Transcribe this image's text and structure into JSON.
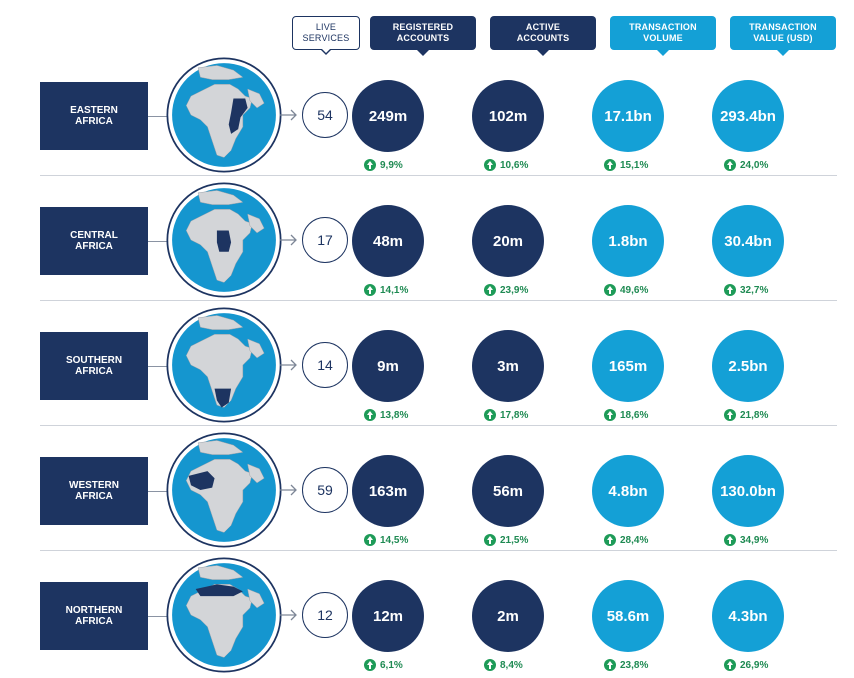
{
  "headers": {
    "live": "LIVE\nSERVICES",
    "registered": "REGISTERED\nACCOUNTS",
    "active": "ACTIVE\nACCOUNTS",
    "volume": "TRANSACTION\nVOLUME",
    "value": "TRANSACTION\nVALUE (USD)"
  },
  "colors": {
    "navy": "#1d3461",
    "cyan": "#14a0d6",
    "ocean": "#1596cf",
    "land": "#d3d5d8",
    "green": "#1e9b58"
  },
  "chart_data": {
    "type": "table",
    "columns": [
      "Live services",
      "Registered accounts",
      "Active accounts",
      "Transaction volume",
      "Transaction value (USD)"
    ],
    "rows": [
      {
        "region": "EASTERN\nAFRICA",
        "live_services": "54",
        "registered": "249m",
        "registered_change": "9,9%",
        "active": "102m",
        "active_change": "10,6%",
        "volume": "17.1bn",
        "volume_change": "15,1%",
        "value": "293.4bn",
        "value_change": "24,0%"
      },
      {
        "region": "CENTRAL\nAFRICA",
        "live_services": "17",
        "registered": "48m",
        "registered_change": "14,1%",
        "active": "20m",
        "active_change": "23,9%",
        "volume": "1.8bn",
        "volume_change": "49,6%",
        "value": "30.4bn",
        "value_change": "32,7%"
      },
      {
        "region": "SOUTHERN\nAFRICA",
        "live_services": "14",
        "registered": "9m",
        "registered_change": "13,8%",
        "active": "3m",
        "active_change": "17,8%",
        "volume": "165m",
        "volume_change": "18,6%",
        "value": "2.5bn",
        "value_change": "21,8%"
      },
      {
        "region": "WESTERN\nAFRICA",
        "live_services": "59",
        "registered": "163m",
        "registered_change": "14,5%",
        "active": "56m",
        "active_change": "21,5%",
        "volume": "4.8bn",
        "volume_change": "28,4%",
        "value": "130.0bn",
        "value_change": "34,9%"
      },
      {
        "region": "NORTHERN\nAFRICA",
        "live_services": "12",
        "registered": "12m",
        "registered_change": "6,1%",
        "active": "2m",
        "active_change": "8,4%",
        "volume": "58.6m",
        "volume_change": "23,8%",
        "value": "4.3bn",
        "value_change": "26,9%"
      }
    ]
  }
}
